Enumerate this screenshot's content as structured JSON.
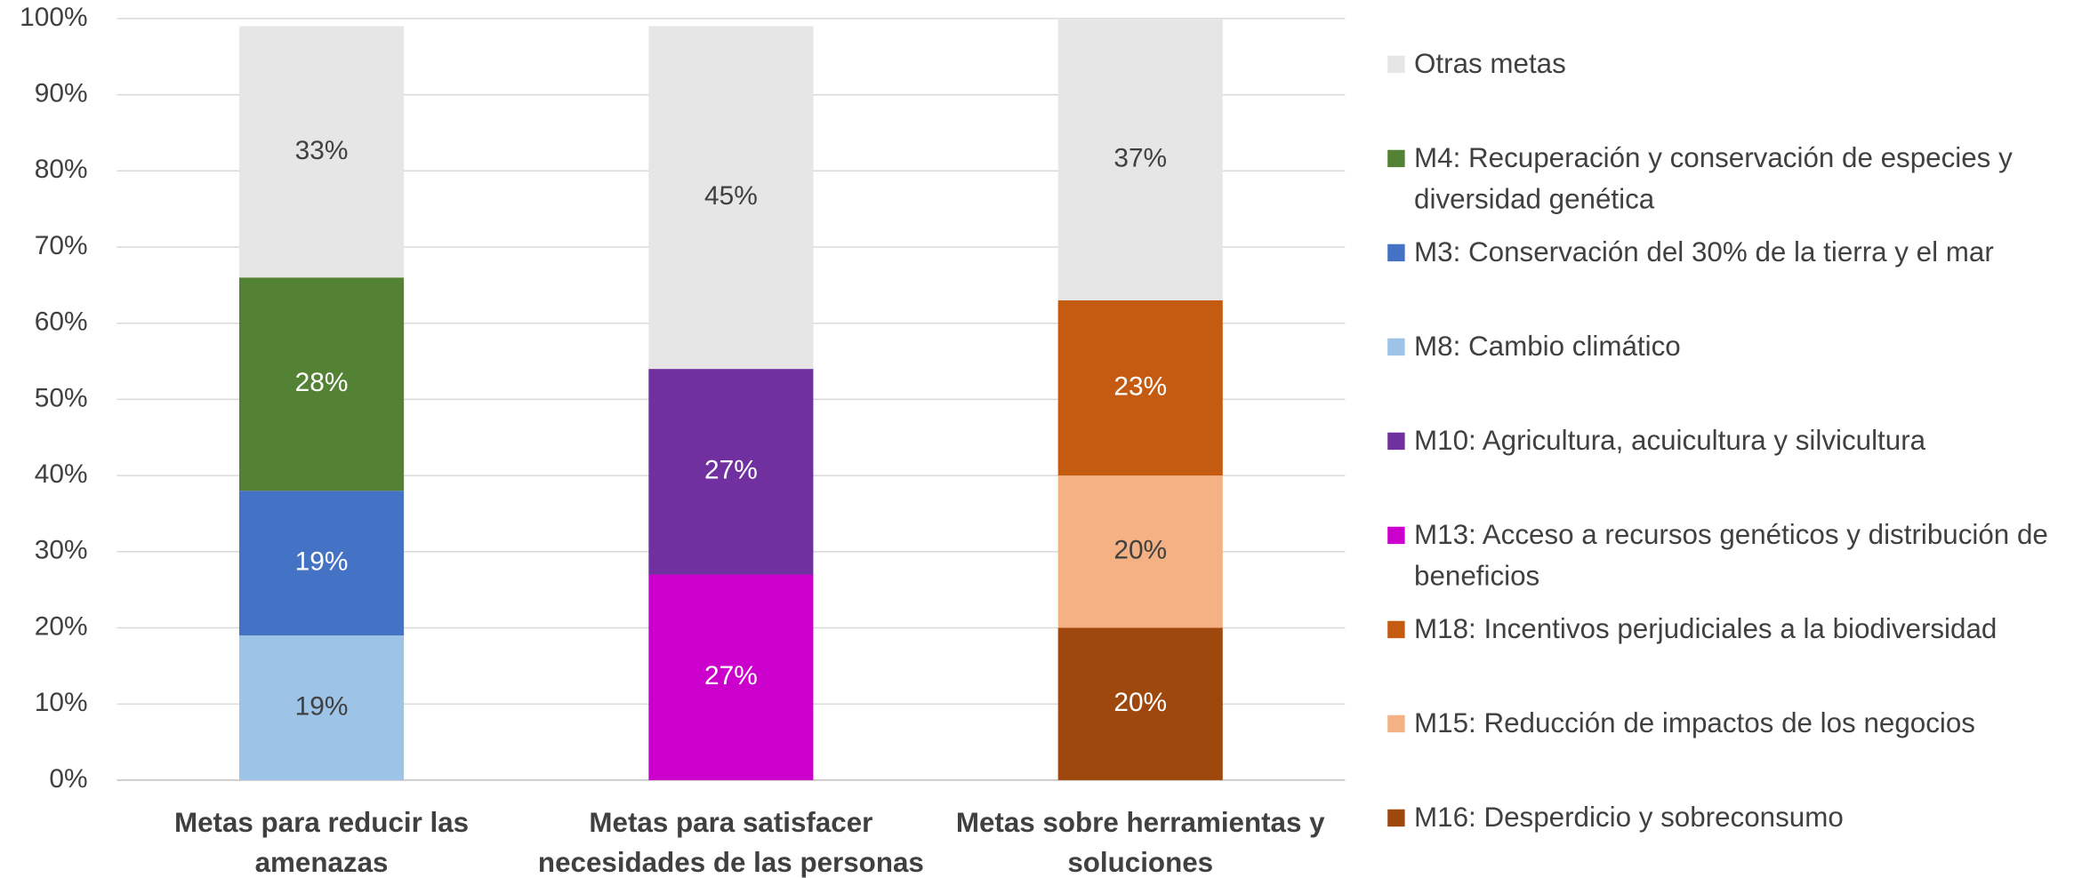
{
  "chart_data": {
    "type": "stacked_bar",
    "categories": [
      "Metas para reducir las amenazas",
      "Metas para satisfacer necesidades de las personas",
      "Metas sobre herramientas y soluciones"
    ],
    "series": [
      {
        "name": "Otras metas",
        "color": "#e7e6e6",
        "values": [
          33,
          45,
          37
        ],
        "value_labels": [
          "33%",
          "45%",
          "37%"
        ]
      },
      {
        "name": "M4: Recuperación y conservación de especies y diversidad genética",
        "color": "#548235",
        "values": [
          28,
          null,
          null
        ],
        "value_labels": [
          "28%",
          null,
          null
        ]
      },
      {
        "name": "M3: Conservación del 30% de la tierra y el mar",
        "color": "#4472c4",
        "values": [
          19,
          null,
          null
        ],
        "value_labels": [
          "19%",
          null,
          null
        ]
      },
      {
        "name": "M8: Cambio climático",
        "color": "#9dc3e6",
        "values": [
          19,
          null,
          null
        ],
        "value_labels": [
          "19%",
          null,
          null
        ]
      },
      {
        "name": "M10: Agricultura, acuicultura y silvicultura",
        "color": "#7030a0",
        "values": [
          null,
          27,
          null
        ],
        "value_labels": [
          null,
          "27%",
          null
        ]
      },
      {
        "name": "M13: Acceso a recursos genéticos y distribución de beneficios",
        "color": "#cc00cc",
        "values": [
          null,
          27,
          null
        ],
        "value_labels": [
          null,
          "27%",
          null
        ]
      },
      {
        "name": "M18: Incentivos perjudiciales a la biodiversidad",
        "color": "#c55a11",
        "values": [
          null,
          null,
          23
        ],
        "value_labels": [
          null,
          null,
          "23%"
        ]
      },
      {
        "name": "M15: Reducción de impactos de los negocios",
        "color": "#f4b183",
        "values": [
          null,
          null,
          20
        ],
        "value_labels": [
          null,
          null,
          "20%"
        ]
      },
      {
        "name": "M16: Desperdicio y sobreconsumo",
        "color": "#9e480e",
        "values": [
          null,
          null,
          20
        ],
        "value_labels": [
          null,
          null,
          "20%"
        ]
      }
    ],
    "ylim": [
      0,
      100
    ],
    "yticks": [
      {
        "value": 0,
        "label": "0%"
      },
      {
        "value": 10,
        "label": "10%"
      },
      {
        "value": 20,
        "label": "20%"
      },
      {
        "value": 30,
        "label": "30%"
      },
      {
        "value": 40,
        "label": "40%"
      },
      {
        "value": 50,
        "label": "50%"
      },
      {
        "value": 60,
        "label": "60%"
      },
      {
        "value": 70,
        "label": "70%"
      },
      {
        "value": 80,
        "label": "80%"
      },
      {
        "value": 90,
        "label": "90%"
      },
      {
        "value": 100,
        "label": "100%"
      }
    ],
    "grid": true,
    "legend": "right"
  }
}
